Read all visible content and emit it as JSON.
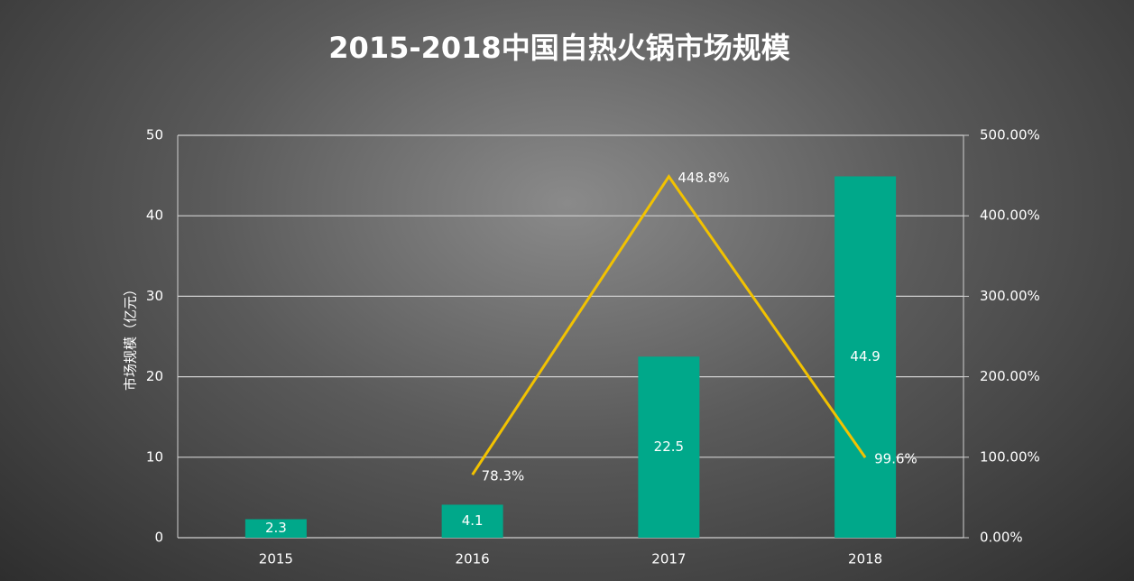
{
  "chart_data": {
    "type": "bar",
    "title": "2015-2018中国自热火锅市场规模",
    "y_label": "市场规模（亿元）",
    "categories": [
      "2015",
      "2016",
      "2017",
      "2018"
    ],
    "series": [
      {
        "type": "bar",
        "color": "#00a88a",
        "values": [
          2.3,
          4.1,
          22.5,
          44.9
        ]
      },
      {
        "type": "line",
        "axis": "y2",
        "color": "#f2c200",
        "values": [
          null,
          78.3,
          448.8,
          99.6
        ],
        "value_labels": [
          null,
          "78.3%",
          "448.8%",
          "99.6%"
        ]
      }
    ],
    "ylim": [
      0,
      50
    ],
    "yticks": [
      0,
      10,
      20,
      30,
      40,
      50
    ],
    "y2lim": [
      0,
      500
    ],
    "y2ticks": [
      {
        "value": 0,
        "label": "0.00%"
      },
      {
        "value": 100,
        "label": "100.00%"
      },
      {
        "value": 200,
        "label": "200.00%"
      },
      {
        "value": 300,
        "label": "300.00%"
      },
      {
        "value": 400,
        "label": "400.00%"
      },
      {
        "value": 500,
        "label": "500.00%"
      }
    ],
    "grid": true
  }
}
